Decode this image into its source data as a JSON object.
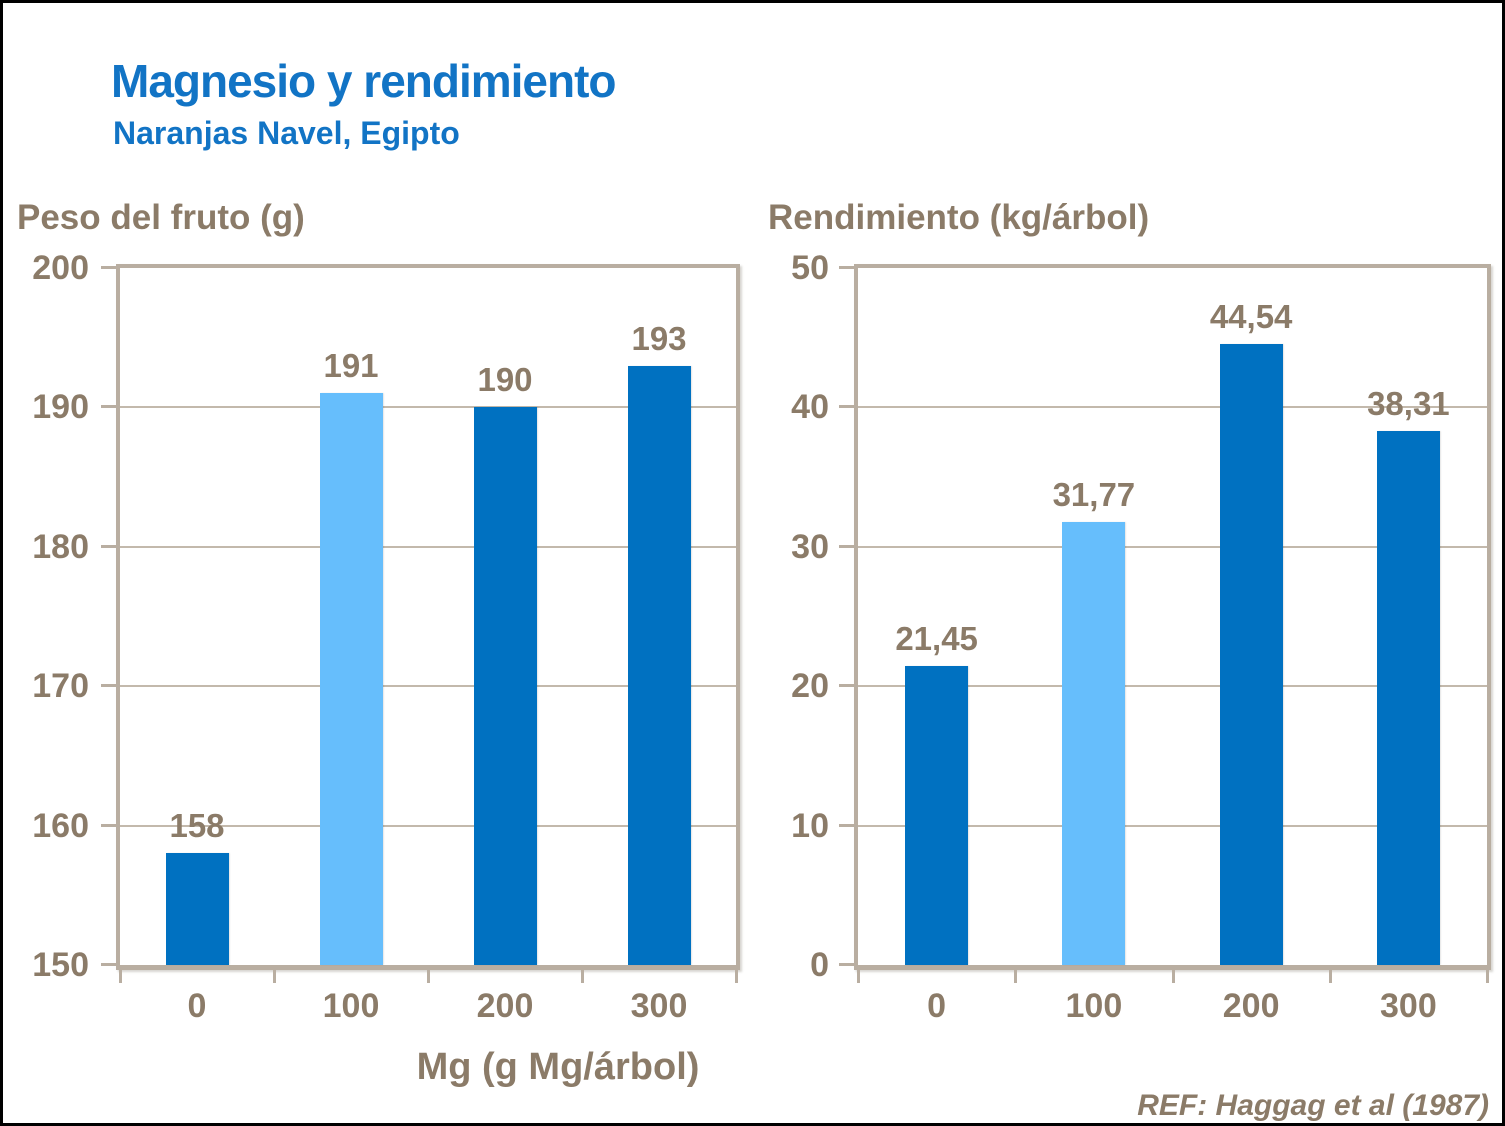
{
  "header": {
    "title": "Magnesio y rendimiento",
    "subtitle": "Naranjas Navel, Egipto"
  },
  "footer": {
    "reference": "REF: Haggag et al (1987)"
  },
  "colors": {
    "title_blue": "#1274C5",
    "bar_blue": "#0071C1",
    "bar_light_blue": "#66BEFC",
    "text_brown": "#8B7B68",
    "frame_beige": "#B9AEA1",
    "grid_beige": "#C3B9AC"
  },
  "chart_data": [
    {
      "type": "bar",
      "title": "Peso del fruto (g)",
      "ylabel": "Peso del fruto (g)",
      "xlabel": "Mg (g Mg/árbol)",
      "categories": [
        "0",
        "100",
        "200",
        "300"
      ],
      "values": [
        158,
        191,
        190,
        193
      ],
      "value_labels": [
        "158",
        "191",
        "190",
        "193"
      ],
      "ylim": [
        150,
        200
      ],
      "ytick_step": 10,
      "ytick_labels": [
        "150",
        "160",
        "170",
        "180",
        "190",
        "200"
      ],
      "grid": true,
      "legend": "none",
      "bar_colors": [
        "#0071C1",
        "#66BEFC",
        "#0071C1",
        "#0071C1"
      ]
    },
    {
      "type": "bar",
      "title": "Rendimiento (kg/árbol)",
      "ylabel": "Rendimiento (kg/árbol)",
      "xlabel": "",
      "categories": [
        "0",
        "100",
        "200",
        "300"
      ],
      "values": [
        21.45,
        31.77,
        44.54,
        38.31
      ],
      "value_labels": [
        "21,45",
        "31,77",
        "44,54",
        "38,31"
      ],
      "ylim": [
        0,
        50
      ],
      "ytick_step": 10,
      "ytick_labels": [
        "0",
        "10",
        "20",
        "30",
        "40",
        "50"
      ],
      "grid": true,
      "legend": "none",
      "bar_colors": [
        "#0071C1",
        "#66BEFC",
        "#0071C1",
        "#0071C1"
      ]
    }
  ]
}
